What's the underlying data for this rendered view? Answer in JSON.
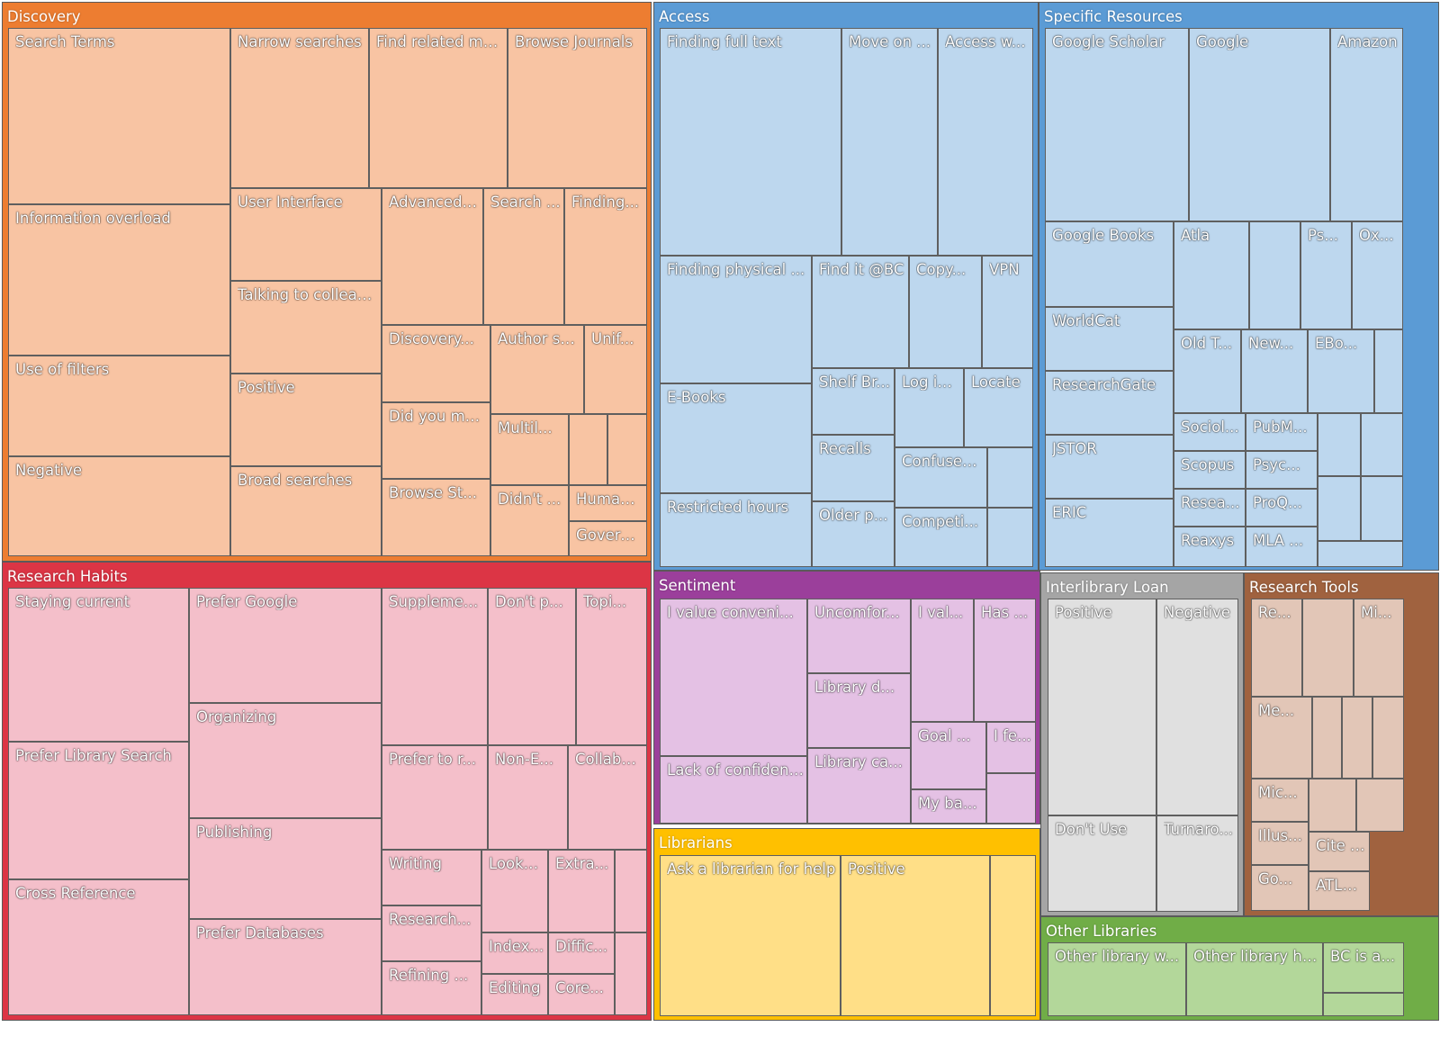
{
  "chart_data": {
    "type": "treemap",
    "groups": [
      {
        "name": "Discovery",
        "color": "#ED7D31",
        "fill": "#F8C4A3",
        "items": [
          {
            "label": "Search Terms",
            "value": 460
          },
          {
            "label": "Information overload",
            "value": 400
          },
          {
            "label": "Use of filters",
            "value": 265
          },
          {
            "label": "Negative",
            "value": 260
          },
          {
            "label": "Narrow searches",
            "value": 270
          },
          {
            "label": "Find related ma...",
            "value": 270
          },
          {
            "label": "Browse Journals",
            "value": 270
          },
          {
            "label": "User Interface",
            "value": 170
          },
          {
            "label": "Talking to colleag...",
            "value": 170
          },
          {
            "label": "Positive",
            "value": 170
          },
          {
            "label": "Broad searches",
            "value": 170
          },
          {
            "label": "Advanced ...",
            "value": 170
          },
          {
            "label": "Search ...",
            "value": 140
          },
          {
            "label": "Finding...",
            "value": 140
          },
          {
            "label": "Discovery...",
            "value": 100
          },
          {
            "label": "Did you me...",
            "value": 100
          },
          {
            "label": "Browse St...",
            "value": 100
          },
          {
            "label": "Author se...",
            "value": 100
          },
          {
            "label": "Unif...",
            "value": 70
          },
          {
            "label": "Multil...",
            "value": 80
          },
          {
            "label": "",
            "value": 35
          },
          {
            "label": "",
            "value": 35
          },
          {
            "label": "Didn't ...",
            "value": 80
          },
          {
            "label": "Human ...",
            "value": 40
          },
          {
            "label": "Govern...",
            "value": 40
          }
        ]
      },
      {
        "name": "Access",
        "color": "#5B9BD5",
        "fill": "#BDD7EE",
        "items": [
          {
            "label": "Finding full text",
            "value": 510
          },
          {
            "label": "Move on ...",
            "value": 275
          },
          {
            "label": "Access w...",
            "value": 275
          },
          {
            "label": "Finding physical ...",
            "value": 240
          },
          {
            "label": "E-Books",
            "value": 205
          },
          {
            "label": "Restricted hours",
            "value": 140
          },
          {
            "label": "Find it @BC",
            "value": 140
          },
          {
            "label": "Copy...",
            "value": 140
          },
          {
            "label": "VPN",
            "value": 70
          },
          {
            "label": "Shelf Br...",
            "value": 70
          },
          {
            "label": "Log in ...",
            "value": 70
          },
          {
            "label": "Locate",
            "value": 70
          },
          {
            "label": "Recalls",
            "value": 70
          },
          {
            "label": "Confused ...",
            "value": 55
          },
          {
            "label": "",
            "value": 15
          },
          {
            "label": "Older p...",
            "value": 70
          },
          {
            "label": "Competi...",
            "value": 55
          },
          {
            "label": "",
            "value": 15
          }
        ]
      },
      {
        "name": "Specific Resources",
        "color": "#5B9BD5",
        "fill": "#BDD7EE",
        "items": [
          {
            "label": "Google Scholar",
            "value": 345
          },
          {
            "label": "Google",
            "value": 345
          },
          {
            "label": "Amazon",
            "value": 190
          },
          {
            "label": "Google Books",
            "value": 145
          },
          {
            "label": "WorldCat",
            "value": 100
          },
          {
            "label": "ResearchGate",
            "value": 100
          },
          {
            "label": "JSTOR",
            "value": 100
          },
          {
            "label": "ERIC",
            "value": 100
          },
          {
            "label": "Atla",
            "value": 95
          },
          {
            "label": "",
            "value": 75
          },
          {
            "label": "Ps...",
            "value": 75
          },
          {
            "label": "Ox...",
            "value": 75
          },
          {
            "label": "Old T...",
            "value": 75
          },
          {
            "label": "New...",
            "value": 75
          },
          {
            "label": "EBo...",
            "value": 75
          },
          {
            "label": "",
            "value": 30
          },
          {
            "label": "Sociol...",
            "value": 45
          },
          {
            "label": "PubM...",
            "value": 45
          },
          {
            "label": "Scopus",
            "value": 45
          },
          {
            "label": "Psyc...",
            "value": 45
          },
          {
            "label": "Resea...",
            "value": 45
          },
          {
            "label": "ProQ...",
            "value": 45
          },
          {
            "label": "Reaxys",
            "value": 45
          },
          {
            "label": "MLA ...",
            "value": 45
          },
          {
            "label": "",
            "value": 30
          },
          {
            "label": "",
            "value": 30
          },
          {
            "label": "",
            "value": 30
          },
          {
            "label": "",
            "value": 30
          },
          {
            "label": "",
            "value": 30
          },
          {
            "label": "",
            "value": 30
          }
        ]
      },
      {
        "name": "Research Habits",
        "color": "#DC3545",
        "fill": "#F4BFCA",
        "items": [
          {
            "label": "Staying current",
            "value": 340
          },
          {
            "label": "Prefer Library Search",
            "value": 310
          },
          {
            "label": "Cross Reference",
            "value": 310
          },
          {
            "label": "Prefer Google",
            "value": 270
          },
          {
            "label": "Organizing",
            "value": 270
          },
          {
            "label": "Publishing",
            "value": 240
          },
          {
            "label": "Prefer Databases",
            "value": 235
          },
          {
            "label": "Supplemen...",
            "value": 200
          },
          {
            "label": "Don't p...",
            "value": 170
          },
          {
            "label": "Topi...",
            "value": 135
          },
          {
            "label": "Prefer to r...",
            "value": 135
          },
          {
            "label": "Non-E...",
            "value": 100
          },
          {
            "label": "Collabo...",
            "value": 100
          },
          {
            "label": "Writing",
            "value": 70
          },
          {
            "label": "Research...",
            "value": 70
          },
          {
            "label": "Refining ...",
            "value": 70
          },
          {
            "label": "Looks...",
            "value": 65
          },
          {
            "label": "Extra...",
            "value": 65
          },
          {
            "label": "",
            "value": 30
          },
          {
            "label": "Index...",
            "value": 40
          },
          {
            "label": "Diffic...",
            "value": 40
          },
          {
            "label": "Editing",
            "value": 40
          },
          {
            "label": "Core...",
            "value": 40
          },
          {
            "label": "",
            "value": 30
          }
        ]
      },
      {
        "name": "Sentiment",
        "color": "#9B3F9B",
        "fill": "#E4C1E4",
        "items": [
          {
            "label": "I value conveni...",
            "value": 180
          },
          {
            "label": "Lack of confidence",
            "value": 80
          },
          {
            "label": "Uncomfor...",
            "value": 80
          },
          {
            "label": "Library d...",
            "value": 80
          },
          {
            "label": "Library ca...",
            "value": 80
          },
          {
            "label": "I val...",
            "value": 70
          },
          {
            "label": "Has ...",
            "value": 70
          },
          {
            "label": "Goal ...",
            "value": 45
          },
          {
            "label": "I fe...",
            "value": 25
          },
          {
            "label": "",
            "value": 25
          },
          {
            "label": "My ba...",
            "value": 45
          }
        ]
      },
      {
        "name": "Librarians",
        "color": "#FFC000",
        "fill": "#FFDF87",
        "items": [
          {
            "label": "Ask a librarian for help",
            "value": 200
          },
          {
            "label": "Positive",
            "value": 170
          },
          {
            "label": "",
            "value": 50
          }
        ]
      },
      {
        "name": "Interlibrary Loan",
        "color": "#A5A5A5",
        "fill": "#E0E0E0",
        "items": [
          {
            "label": "Positive",
            "value": 120
          },
          {
            "label": "Negative",
            "value": 90
          },
          {
            "label": "Don't Use",
            "value": 55
          },
          {
            "label": "Turnaro...",
            "value": 45
          }
        ]
      },
      {
        "name": "Research Tools",
        "color": "#A0623F",
        "fill": "#E2C6B7",
        "items": [
          {
            "label": "Re...",
            "value": 30
          },
          {
            "label": "",
            "value": 30
          },
          {
            "label": "Mi...",
            "value": 30
          },
          {
            "label": "Me...",
            "value": 30
          },
          {
            "label": "",
            "value": 15
          },
          {
            "label": "",
            "value": 15
          },
          {
            "label": "",
            "value": 15
          },
          {
            "label": "Mic...",
            "value": 17
          },
          {
            "label": "Illus...",
            "value": 17
          },
          {
            "label": "Go...",
            "value": 17
          },
          {
            "label": "",
            "value": 17
          },
          {
            "label": "",
            "value": 17
          },
          {
            "label": "Cite t...",
            "value": 17
          },
          {
            "label": "ATLA...",
            "value": 17
          }
        ]
      },
      {
        "name": "Other Libraries",
        "color": "#70AD47",
        "fill": "#B3D79A",
        "items": [
          {
            "label": "Other library w...",
            "value": 80
          },
          {
            "label": "Other library ha...",
            "value": 80
          },
          {
            "label": "BC is a...",
            "value": 40
          },
          {
            "label": "",
            "value": 15
          }
        ]
      }
    ]
  }
}
